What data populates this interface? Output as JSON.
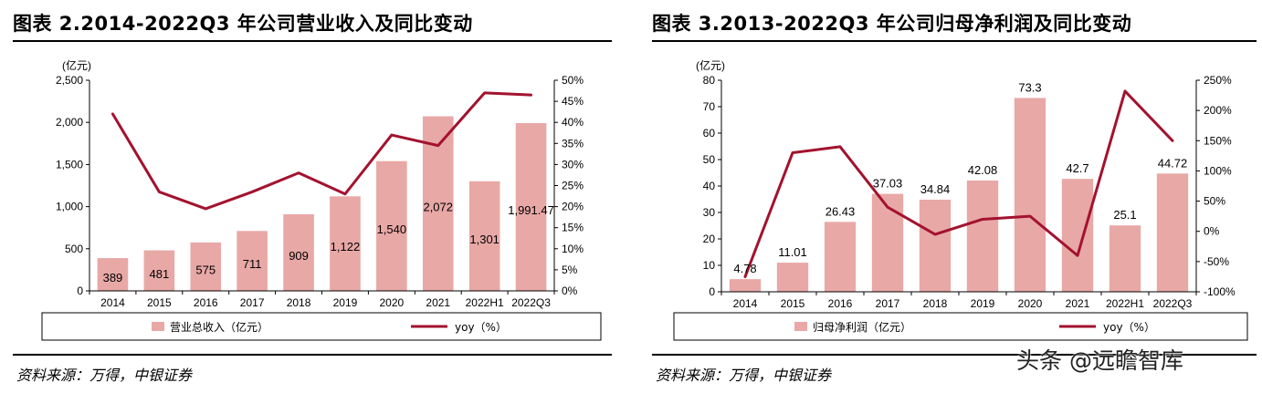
{
  "watermark": "头条 @远瞻智库",
  "chart_data": [
    {
      "type": "bar",
      "title": "图表 2.2014-2022Q3 年公司营业收入及同比变动",
      "source": "资料来源：万得，中银证券",
      "categories": [
        "2014",
        "2015",
        "2016",
        "2017",
        "2018",
        "2019",
        "2020",
        "2021",
        "2022H1",
        "2022Q3"
      ],
      "y_unit": "(亿元)",
      "ylim": [
        0,
        2500
      ],
      "yticks": [
        0,
        500,
        1000,
        1500,
        2000,
        2500
      ],
      "ytick_labels": [
        "0",
        "500",
        "1,000",
        "1,500",
        "2,000",
        "2,500"
      ],
      "y2lim": [
        0,
        50
      ],
      "y2ticks": [
        0,
        5,
        10,
        15,
        20,
        25,
        30,
        35,
        40,
        45,
        50
      ],
      "y2tick_labels": [
        "0%",
        "5%",
        "10%",
        "15%",
        "20%",
        "25%",
        "30%",
        "35%",
        "40%",
        "45%",
        "50%"
      ],
      "series": [
        {
          "name": "营业总收入（亿元）",
          "type": "bar",
          "axis": "left",
          "values": [
            389,
            481,
            575,
            711,
            909,
            1122,
            1540,
            2072,
            1301,
            1991.47
          ],
          "labels": [
            "389",
            "481",
            "575",
            "711",
            "909",
            "1,122",
            "1,540",
            "2,072",
            "1,301",
            "1,991.47"
          ]
        },
        {
          "name": "yoy（%）",
          "type": "line",
          "axis": "right",
          "values": [
            42,
            23.5,
            19.5,
            23.5,
            28,
            23,
            37,
            34.5,
            47,
            46.5
          ]
        }
      ],
      "grid": false,
      "legend_position": "bottom"
    },
    {
      "type": "bar",
      "title": "图表 3.2013-2022Q3 年公司归母净利润及同比变动",
      "source": "资料来源：万得，中银证券",
      "categories": [
        "2014",
        "2015",
        "2016",
        "2017",
        "2018",
        "2019",
        "2020",
        "2021",
        "2022H1",
        "2022Q3"
      ],
      "y_unit": "(亿元)",
      "ylim": [
        0,
        80
      ],
      "yticks": [
        0,
        10,
        20,
        30,
        40,
        50,
        60,
        70,
        80
      ],
      "ytick_labels": [
        "0",
        "10",
        "20",
        "30",
        "40",
        "50",
        "60",
        "70",
        "80"
      ],
      "y2lim": [
        -100,
        250
      ],
      "y2ticks": [
        -100,
        -50,
        0,
        50,
        100,
        150,
        200,
        250
      ],
      "y2tick_labels": [
        "-100%",
        "-50%",
        "0%",
        "50%",
        "100%",
        "150%",
        "200%",
        "250%"
      ],
      "series": [
        {
          "name": "归母净利润（亿元）",
          "type": "bar",
          "axis": "left",
          "values": [
            4.78,
            11.01,
            26.43,
            37.03,
            34.84,
            42.08,
            73.3,
            42.7,
            25.1,
            44.72
          ],
          "labels": [
            "4.78",
            "11.01",
            "26.43",
            "37.03",
            "34.84",
            "42.08",
            "73.3",
            "42.7",
            "25.1",
            "44.72"
          ]
        },
        {
          "name": "yoy（%）",
          "type": "line",
          "axis": "right",
          "values": [
            -75,
            130,
            140,
            40,
            -5,
            20,
            25,
            -40,
            232,
            150
          ]
        }
      ],
      "grid": false,
      "legend_position": "bottom"
    }
  ],
  "colors": {
    "bar": "#e8a8a6",
    "line": "#a3122e",
    "axis": "#000000"
  }
}
